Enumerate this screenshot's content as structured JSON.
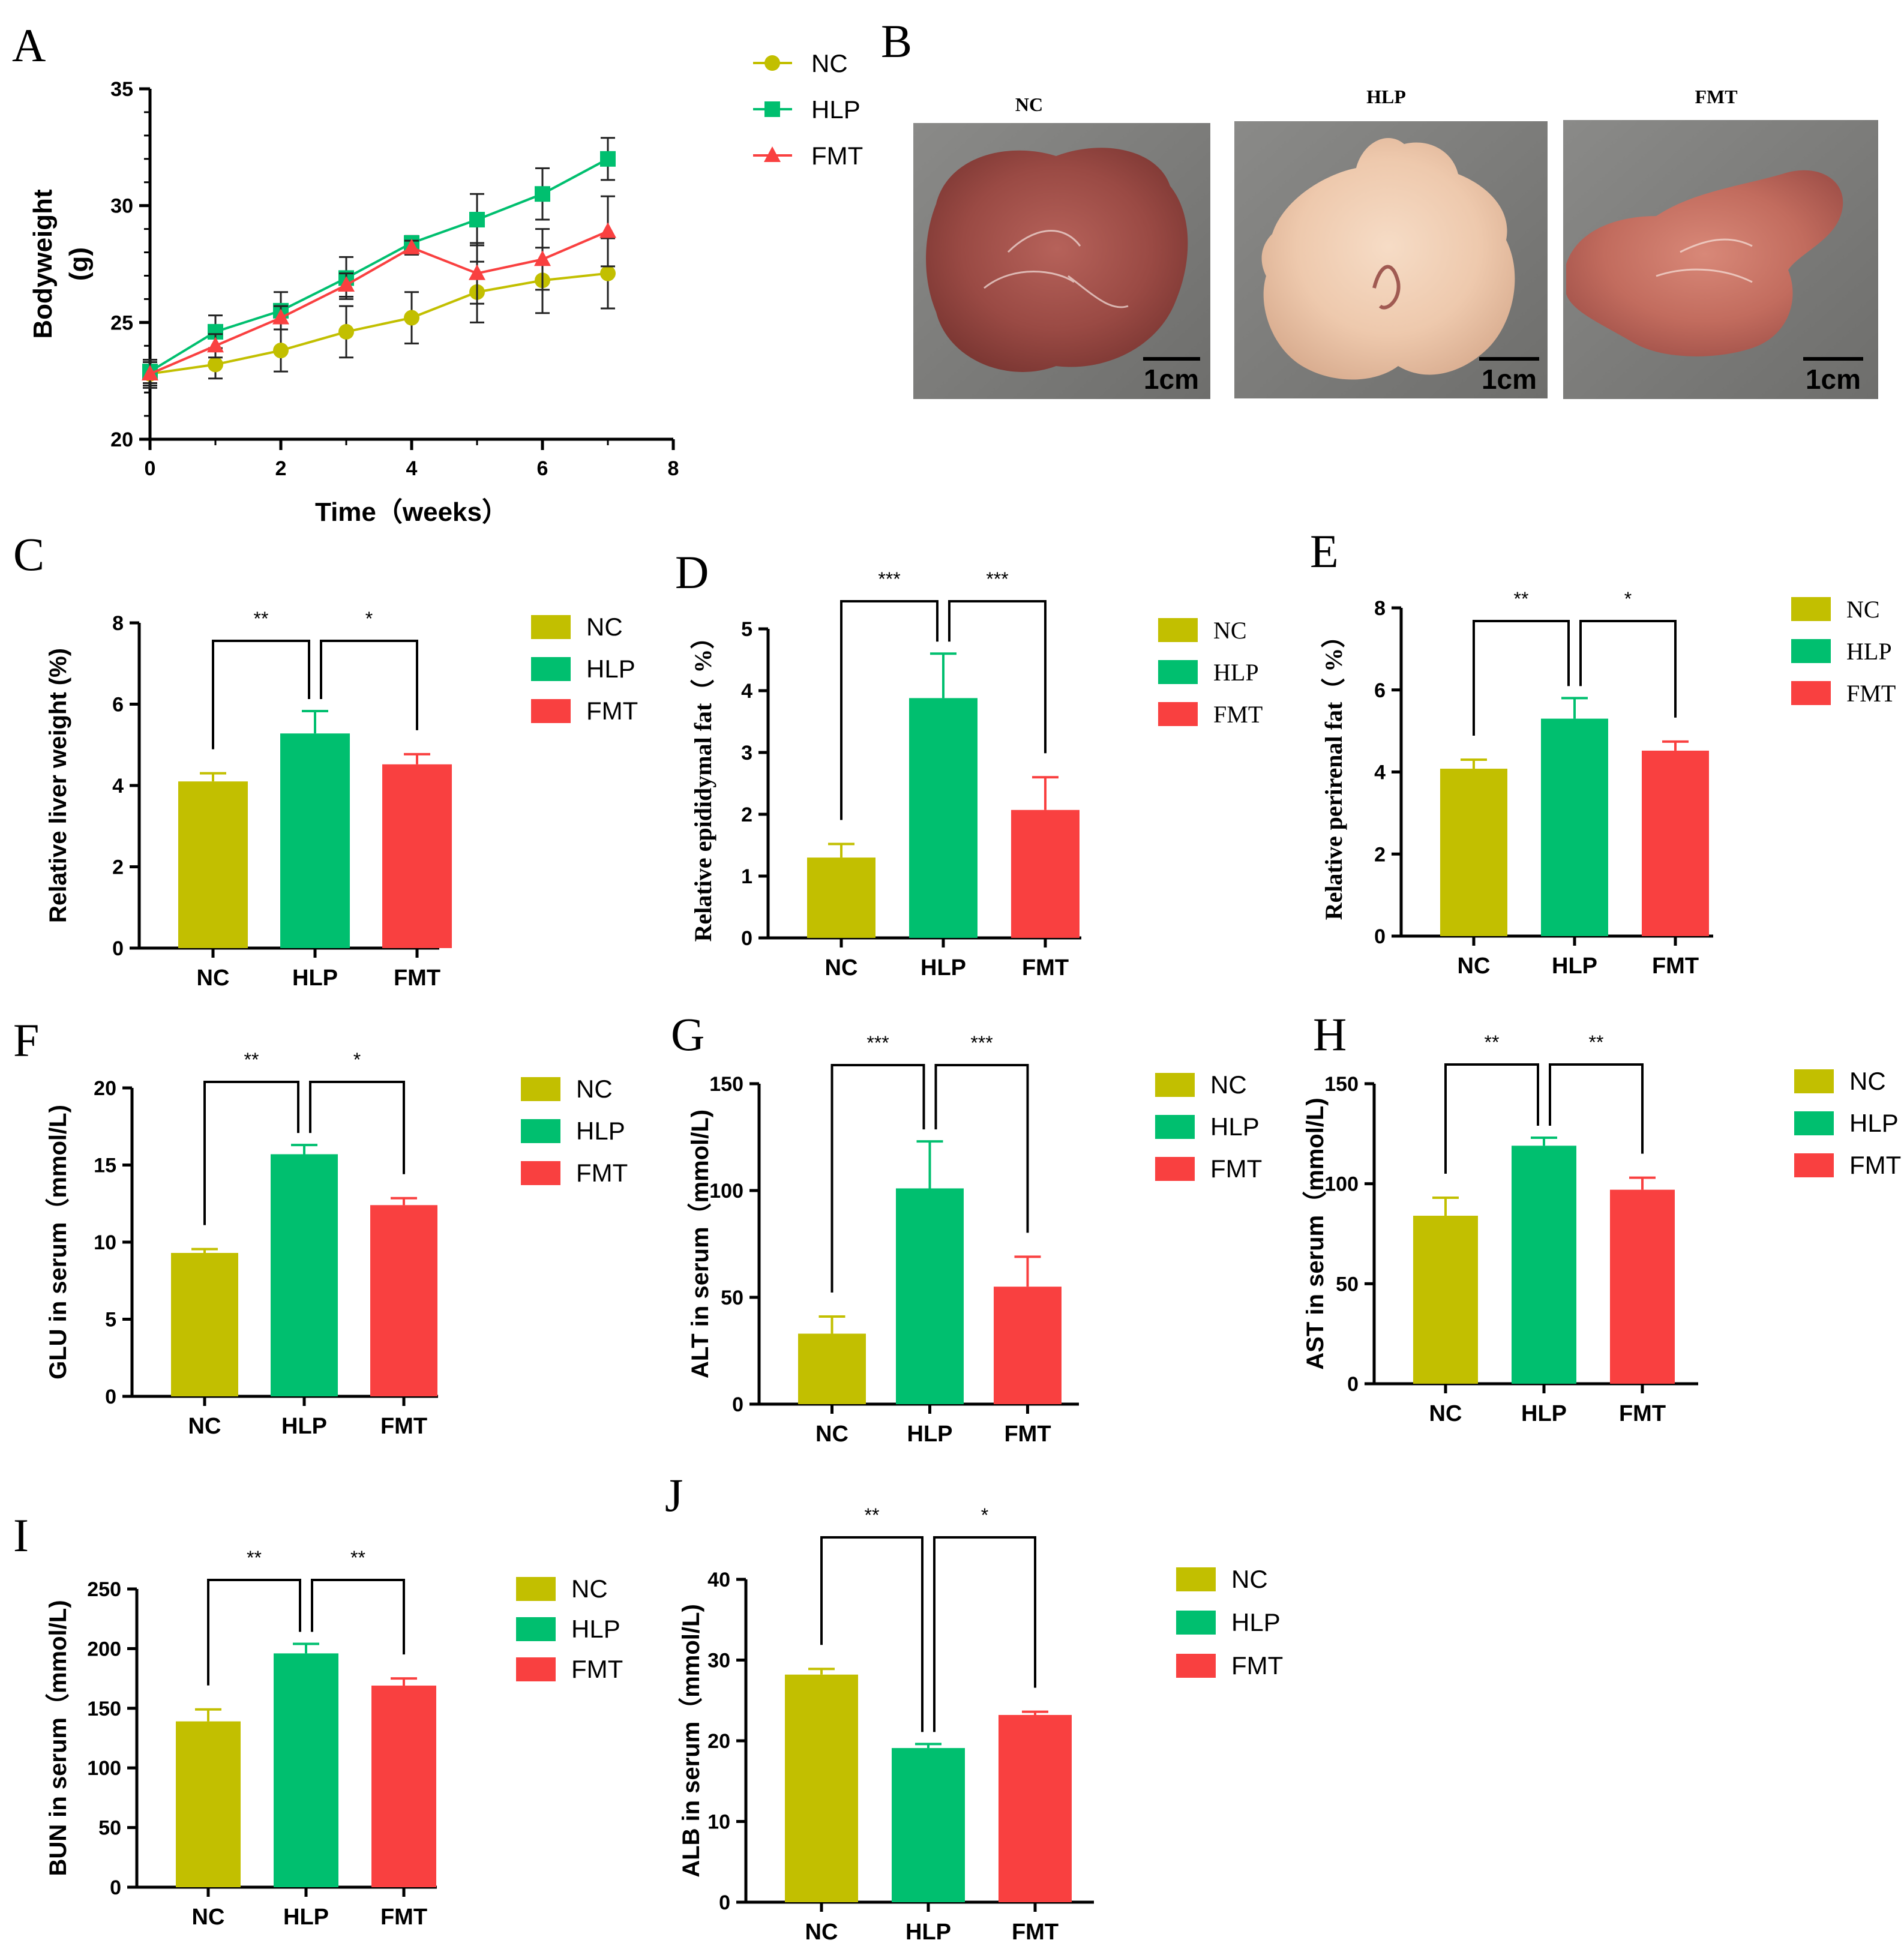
{
  "colors": {
    "NC": "#c2bf00",
    "HLP": "#00bf6f",
    "FMT": "#f94040",
    "axis": "#000000"
  },
  "legend": [
    "NC",
    "HLP",
    "FMT"
  ],
  "panels": {
    "A": {
      "letter": "A"
    },
    "B": {
      "letter": "B",
      "photos": [
        {
          "label": "NC",
          "scale": "1cm"
        },
        {
          "label": "HLP",
          "scale": "1cm"
        },
        {
          "label": "FMT",
          "scale": "1cm"
        }
      ]
    }
  },
  "chart_data": [
    {
      "id": "A",
      "type": "line",
      "title": "",
      "xlabel": "Time（weeks）",
      "ylabel": "Bodyweight",
      "ylabel2": "(g)",
      "xlim": [
        0,
        8
      ],
      "ylim": [
        20,
        35
      ],
      "xticks": [
        "0",
        "2",
        "4",
        "6",
        "8"
      ],
      "yticks": [
        "20",
        "25",
        "30",
        "35"
      ],
      "x": [
        0,
        1,
        2,
        3,
        4,
        5,
        6,
        7
      ],
      "series": [
        {
          "name": "NC",
          "values": [
            22.8,
            23.2,
            23.8,
            24.6,
            25.2,
            26.3,
            26.8,
            27.1
          ],
          "errors": [
            0.6,
            0.6,
            0.9,
            1.1,
            1.1,
            1.3,
            1.4,
            1.5
          ]
        },
        {
          "name": "HLP",
          "values": [
            22.9,
            24.6,
            25.5,
            26.9,
            28.4,
            29.4,
            30.5,
            32.0
          ],
          "errors": [
            0.5,
            0.7,
            0.8,
            0.9,
            0.3,
            1.1,
            1.1,
            0.9
          ]
        },
        {
          "name": "FMT",
          "values": [
            22.8,
            24.0,
            25.2,
            26.6,
            28.2,
            27.1,
            27.7,
            28.9
          ],
          "errors": [
            0.5,
            0.5,
            0.5,
            0.5,
            0.3,
            1.3,
            1.3,
            1.5
          ]
        }
      ]
    },
    {
      "id": "C",
      "type": "bar",
      "letter": "C",
      "categories": [
        "NC",
        "HLP",
        "FMT"
      ],
      "values": [
        4.1,
        5.28,
        4.52
      ],
      "errors": [
        0.2,
        0.55,
        0.25
      ],
      "ylabel": "Relative liver weight (%)",
      "ylim": [
        0,
        8
      ],
      "yticks": [
        "0",
        "2",
        "4",
        "6",
        "8"
      ],
      "sig": [
        "**",
        "*"
      ]
    },
    {
      "id": "D",
      "type": "bar",
      "letter": "D",
      "categories": [
        "NC",
        "HLP",
        "FMT"
      ],
      "values": [
        1.3,
        3.88,
        2.07
      ],
      "errors": [
        0.22,
        0.72,
        0.53
      ],
      "ylabel": "Relative epididymal fat（ %）",
      "ylim": [
        0,
        5
      ],
      "yticks": [
        "0",
        "1",
        "2",
        "3",
        "4",
        "5"
      ],
      "sig": [
        "***",
        "***"
      ]
    },
    {
      "id": "E",
      "type": "bar",
      "letter": "E",
      "categories": [
        "NC",
        "HLP",
        "FMT"
      ],
      "values": [
        4.08,
        5.3,
        4.52
      ],
      "errors": [
        0.22,
        0.5,
        0.22
      ],
      "ylabel": "Relative perirenal fat（ %）",
      "ylim": [
        0,
        8
      ],
      "yticks": [
        "0",
        "2",
        "4",
        "6",
        "8"
      ],
      "sig": [
        "**",
        "*"
      ]
    },
    {
      "id": "F",
      "type": "bar",
      "letter": "F",
      "categories": [
        "NC",
        "HLP",
        "FMT"
      ],
      "values": [
        9.3,
        15.7,
        12.4
      ],
      "errors": [
        0.25,
        0.6,
        0.45
      ],
      "ylabel": "GLU in serum（mmol/L)",
      "ylim": [
        0,
        20
      ],
      "yticks": [
        "0",
        "5",
        "10",
        "15",
        "20"
      ],
      "sig": [
        "**",
        "*"
      ]
    },
    {
      "id": "G",
      "type": "bar",
      "letter": "G",
      "categories": [
        "NC",
        "HLP",
        "FMT"
      ],
      "values": [
        33,
        101,
        55
      ],
      "errors": [
        8,
        22,
        14
      ],
      "ylabel": "ALT in serum（mmol/L)",
      "ylim": [
        0,
        150
      ],
      "yticks": [
        "0",
        "50",
        "100",
        "150"
      ],
      "sig": [
        "***",
        "***"
      ]
    },
    {
      "id": "H",
      "type": "bar",
      "letter": "H",
      "categories": [
        "NC",
        "HLP",
        "FMT"
      ],
      "values": [
        84,
        119,
        97
      ],
      "errors": [
        9,
        4,
        6
      ],
      "ylabel": "AST in serum（mmol/L)",
      "ylim": [
        0,
        150
      ],
      "yticks": [
        "0",
        "50",
        "100",
        "150"
      ],
      "sig": [
        "**",
        "**"
      ]
    },
    {
      "id": "I",
      "type": "bar",
      "letter": "I",
      "categories": [
        "NC",
        "HLP",
        "FMT"
      ],
      "values": [
        139,
        196,
        169
      ],
      "errors": [
        10,
        8,
        6
      ],
      "ylabel": "BUN in serum（mmol/L)",
      "ylim": [
        0,
        250
      ],
      "yticks": [
        "0",
        "50",
        "100",
        "150",
        "200",
        "250"
      ],
      "sig": [
        "**",
        "**"
      ]
    },
    {
      "id": "J",
      "type": "bar",
      "letter": "J",
      "categories": [
        "NC",
        "HLP",
        "FMT"
      ],
      "values": [
        28.2,
        19.1,
        23.2
      ],
      "errors": [
        0.7,
        0.5,
        0.4
      ],
      "ylabel": "ALB in serum（mmol/L)",
      "ylim": [
        0,
        40
      ],
      "yticks": [
        "0",
        "10",
        "20",
        "30",
        "40"
      ],
      "sig": [
        "**",
        "*"
      ]
    }
  ]
}
